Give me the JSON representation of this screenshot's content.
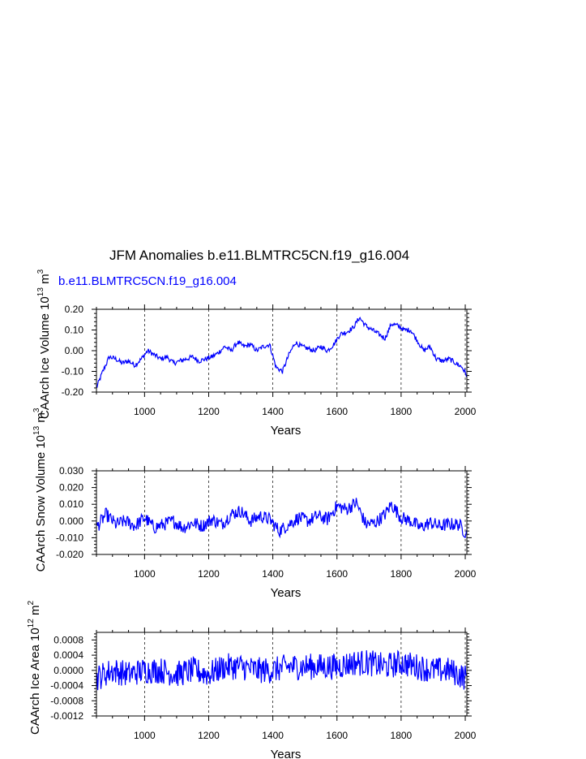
{
  "title": "JFM Anomalies b.e11.BLMTRC5CN.f19_g16.004",
  "subtitle": "b.e11.BLMTRC5CN.f19_g16.004",
  "line_color": "#0000ff",
  "chart_data": [
    {
      "type": "line",
      "ylabel": "CAArch Ice Volume 10",
      "ylabel_exp": "13",
      "ylabel_unit": " m",
      "ylabel_unit_exp": "3",
      "xlabel": "Years",
      "xlim": [
        850,
        2005
      ],
      "ylim": [
        -0.2,
        0.2
      ],
      "xticks": [
        1000,
        1200,
        1400,
        1600,
        1800,
        2000
      ],
      "yticks": [
        -0.2,
        -0.1,
        0.0,
        0.1,
        0.2
      ],
      "ytick_labels": [
        "-0.20",
        "-0.10",
        "0.00",
        "0.10",
        "0.20"
      ],
      "x": [
        850,
        870,
        890,
        910,
        930,
        950,
        970,
        990,
        1010,
        1030,
        1050,
        1070,
        1090,
        1110,
        1130,
        1150,
        1170,
        1190,
        1210,
        1230,
        1250,
        1270,
        1290,
        1310,
        1330,
        1350,
        1370,
        1390,
        1410,
        1430,
        1450,
        1470,
        1490,
        1510,
        1530,
        1550,
        1570,
        1590,
        1610,
        1630,
        1650,
        1670,
        1690,
        1710,
        1730,
        1750,
        1770,
        1790,
        1810,
        1830,
        1850,
        1870,
        1890,
        1910,
        1930,
        1950,
        1970,
        1990,
        2005
      ],
      "y": [
        -0.18,
        -0.1,
        -0.03,
        -0.04,
        -0.06,
        -0.05,
        -0.07,
        -0.04,
        0.0,
        -0.02,
        -0.04,
        -0.03,
        -0.06,
        -0.05,
        -0.04,
        -0.03,
        -0.05,
        -0.04,
        -0.03,
        -0.01,
        0.02,
        0.0,
        0.04,
        0.02,
        0.03,
        0.0,
        0.02,
        0.03,
        -0.08,
        -0.1,
        -0.02,
        0.04,
        0.02,
        0.01,
        0.0,
        0.02,
        0.0,
        0.03,
        0.08,
        0.09,
        0.11,
        0.16,
        0.12,
        0.1,
        0.08,
        0.06,
        0.13,
        0.12,
        0.1,
        0.1,
        0.05,
        0.0,
        0.02,
        -0.04,
        -0.05,
        -0.04,
        -0.06,
        -0.08,
        -0.12
      ]
    },
    {
      "type": "line",
      "ylabel": "CAArch Snow Volume 10",
      "ylabel_exp": "13",
      "ylabel_unit": " m",
      "ylabel_unit_exp": "3",
      "xlabel": "Years",
      "xlim": [
        850,
        2005
      ],
      "ylim": [
        -0.02,
        0.03
      ],
      "xticks": [
        1000,
        1200,
        1400,
        1600,
        1800,
        2000
      ],
      "yticks": [
        -0.02,
        -0.01,
        0.0,
        0.01,
        0.02,
        0.03
      ],
      "ytick_labels": [
        "-0.020",
        "-0.010",
        "0.000",
        "0.010",
        "0.020",
        "0.030"
      ],
      "x": [
        850,
        880,
        910,
        940,
        970,
        1000,
        1030,
        1060,
        1090,
        1120,
        1150,
        1180,
        1210,
        1240,
        1270,
        1300,
        1330,
        1360,
        1390,
        1420,
        1450,
        1480,
        1510,
        1540,
        1570,
        1600,
        1630,
        1660,
        1690,
        1720,
        1750,
        1770,
        1800,
        1830,
        1860,
        1890,
        1920,
        1950,
        1980,
        2005
      ],
      "y": [
        -0.004,
        0.004,
        -0.002,
        0.0,
        -0.003,
        0.002,
        -0.004,
        -0.002,
        0.0,
        -0.004,
        -0.001,
        -0.003,
        0.001,
        -0.002,
        0.004,
        0.006,
        0.0,
        0.003,
        0.001,
        -0.006,
        -0.002,
        0.002,
        0.0,
        0.003,
        0.001,
        0.009,
        0.007,
        0.011,
        -0.002,
        -0.001,
        0.004,
        0.01,
        0.002,
        0.0,
        -0.004,
        -0.001,
        -0.003,
        -0.002,
        -0.002,
        -0.008
      ],
      "noise": 0.004
    },
    {
      "type": "line",
      "ylabel": "CAArch Ice Area 10",
      "ylabel_exp": "12",
      "ylabel_unit": " m",
      "ylabel_unit_exp": "2",
      "xlabel": "Years",
      "xlim": [
        850,
        2005
      ],
      "ylim": [
        -0.0012,
        0.001
      ],
      "xticks": [
        1000,
        1200,
        1400,
        1600,
        1800,
        2000
      ],
      "yticks": [
        -0.0012,
        -0.0008,
        -0.0004,
        0.0,
        0.0004,
        0.0008
      ],
      "ytick_labels": [
        "-0.0012",
        "-0.0008",
        "-0.0004",
        "0.0000",
        "0.0004",
        "0.0008"
      ],
      "x": [
        850,
        900,
        950,
        1000,
        1050,
        1100,
        1150,
        1200,
        1250,
        1300,
        1350,
        1400,
        1450,
        1500,
        1550,
        1600,
        1650,
        1700,
        1750,
        1800,
        1850,
        1900,
        1950,
        2005
      ],
      "y": [
        -0.0002,
        0.0,
        -0.0001,
        0.0,
        0.0,
        -0.0001,
        0.0,
        -0.0001,
        0.0001,
        0.0001,
        0.0,
        0.0,
        0.0001,
        0.0001,
        0.0001,
        0.0001,
        0.0002,
        0.0002,
        0.0001,
        0.0002,
        0.0001,
        0.0,
        0.0,
        -0.0002
      ],
      "noise": 0.00035
    }
  ]
}
